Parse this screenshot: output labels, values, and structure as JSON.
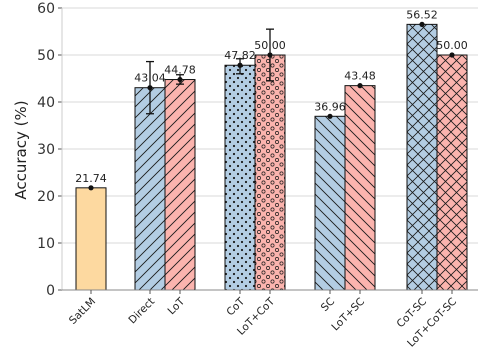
{
  "chart_data": {
    "type": "bar",
    "ylabel": "Accuracy (%)",
    "xlabel": "",
    "ylim": [
      0,
      60
    ],
    "yticks": [
      0,
      10,
      20,
      30,
      40,
      50,
      60
    ],
    "grid": true,
    "colors": {
      "satlm": "#fdd9a0",
      "blue": "#b3cde3",
      "pink": "#fbb4ae",
      "edge": "#111111",
      "grid": "#d9d9d9"
    },
    "bars": [
      {
        "label": "SatLM",
        "value": 21.74,
        "value_label": "21.74",
        "color": "satlm",
        "hatch": "none"
      },
      {
        "label": "Direct",
        "value": 43.04,
        "value_label": "43.04",
        "color": "blue",
        "hatch": "diag",
        "error": [
          37.5,
          48.6
        ]
      },
      {
        "label": "LoT",
        "value": 44.78,
        "value_label": "44.78",
        "color": "pink",
        "hatch": "diag",
        "error": [
          43.8,
          45.8
        ]
      },
      {
        "label": "CoT",
        "value": 47.82,
        "value_label": "47.82",
        "color": "blue",
        "hatch": "dots",
        "error": [
          46.0,
          49.2
        ]
      },
      {
        "label": "LoT+CoT",
        "value": 50.0,
        "value_label": "50.00",
        "color": "pink",
        "hatch": "circles",
        "error": [
          44.5,
          55.5
        ]
      },
      {
        "label": "SC",
        "value": 36.96,
        "value_label": "36.96",
        "color": "blue",
        "hatch": "backdiag"
      },
      {
        "label": "LoT+SC",
        "value": 43.48,
        "value_label": "43.48",
        "color": "pink",
        "hatch": "backdiag"
      },
      {
        "label": "CoT-SC",
        "value": 56.52,
        "value_label": "56.52",
        "color": "blue",
        "hatch": "cross"
      },
      {
        "label": "LoT+CoT-SC",
        "value": 50.0,
        "value_label": "50.00",
        "color": "pink",
        "hatch": "cross"
      }
    ]
  }
}
